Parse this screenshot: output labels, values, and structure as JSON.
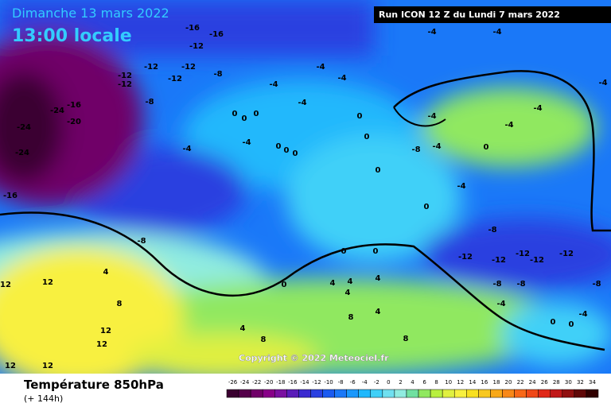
{
  "header": {
    "date": "Dimanche 13 mars 2022",
    "time": "13:00 locale",
    "run": "Run ICON 12 Z du Lundi 7 mars 2022"
  },
  "copyright": "Copyright © 2022 Meteociel.fr",
  "footer": {
    "title": "Température 850hPa",
    "lead": "(+ 144h)"
  },
  "legend": {
    "values": [
      -26,
      -24,
      -22,
      -20,
      -18,
      -16,
      -14,
      -12,
      -10,
      -8,
      -6,
      -4,
      -2,
      0,
      2,
      4,
      6,
      8,
      10,
      12,
      14,
      16,
      18,
      20,
      22,
      24,
      26,
      28,
      30,
      32,
      34
    ],
    "colors": [
      "#3a0030",
      "#55004a",
      "#700068",
      "#880088",
      "#7a10a0",
      "#5a1cb8",
      "#3a2ad0",
      "#2a40e0",
      "#1a5af0",
      "#1a78f8",
      "#1a98fc",
      "#20b8fc",
      "#40d0f8",
      "#70e0f0",
      "#90ece0",
      "#70e0a0",
      "#90e860",
      "#b8f040",
      "#e0f040",
      "#f8f040",
      "#f8e020",
      "#f8c820",
      "#f8a818",
      "#f88818",
      "#f86818",
      "#f04818",
      "#e02818",
      "#c01818",
      "#901010",
      "#600808",
      "#300000"
    ]
  },
  "map_labels": [
    -16,
    -16,
    -12,
    -12,
    -12,
    -12,
    -12,
    -12,
    -8,
    -8,
    -16,
    -24,
    -20,
    -24,
    -24,
    -16,
    -4,
    -4,
    -4,
    -4,
    -4,
    -4,
    -4,
    -4,
    -8,
    0,
    0,
    0,
    0,
    0,
    0,
    0,
    0,
    0,
    -8,
    -4,
    0,
    -4,
    -4,
    -4,
    -4,
    -4,
    0,
    -8,
    -12,
    -12,
    -12,
    -12,
    -12,
    -8,
    -8,
    -8,
    -4,
    0,
    0,
    -4,
    0,
    0,
    0,
    4,
    4,
    4,
    4,
    4,
    4,
    4,
    8,
    8,
    8,
    8,
    12,
    12,
    12,
    12,
    12,
    12
  ]
}
